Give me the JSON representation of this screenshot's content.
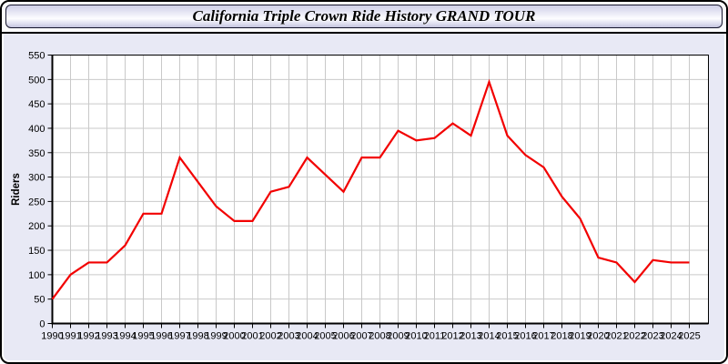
{
  "window": {
    "title": "California Triple Crown Ride History GRAND TOUR"
  },
  "colors": {
    "body_bg": "#E8E9F5",
    "header_bg": "#FBFBFD",
    "titlebar_border": "#16162C",
    "plot_bg": "#FFFFFF",
    "gridline": "#C9C9C9",
    "axis": "#000000",
    "tick_text": "#000000",
    "series_line": "#F20000"
  },
  "chart_data": {
    "type": "line",
    "title": "California Triple Crown Ride History GRAND TOUR",
    "xlabel": "",
    "ylabel": "Riders",
    "ylim": [
      0,
      550
    ],
    "ytick_step": 50,
    "yticks": [
      0,
      50,
      100,
      150,
      200,
      250,
      300,
      350,
      400,
      450,
      500,
      550
    ],
    "grid": true,
    "legend": false,
    "categories": [
      "1990",
      "1991",
      "1992",
      "1993",
      "1994",
      "1995",
      "1996",
      "1997",
      "1998",
      "1999",
      "2000",
      "2001",
      "2002",
      "2003",
      "2004",
      "2005",
      "2006",
      "2007",
      "2008",
      "2009",
      "2010",
      "2011",
      "2012",
      "2013",
      "2014",
      "2015",
      "2016",
      "2017",
      "2018",
      "2019",
      "2020",
      "2021",
      "2022",
      "2023",
      "2024",
      "2025"
    ],
    "series": [
      {
        "name": "Riders",
        "color": "#F20000",
        "values": [
          50,
          100,
          125,
          125,
          160,
          225,
          225,
          340,
          290,
          240,
          210,
          210,
          270,
          280,
          340,
          305,
          270,
          340,
          340,
          395,
          375,
          380,
          410,
          385,
          495,
          385,
          345,
          320,
          260,
          215,
          135,
          125,
          85,
          130,
          125,
          125
        ]
      }
    ]
  }
}
